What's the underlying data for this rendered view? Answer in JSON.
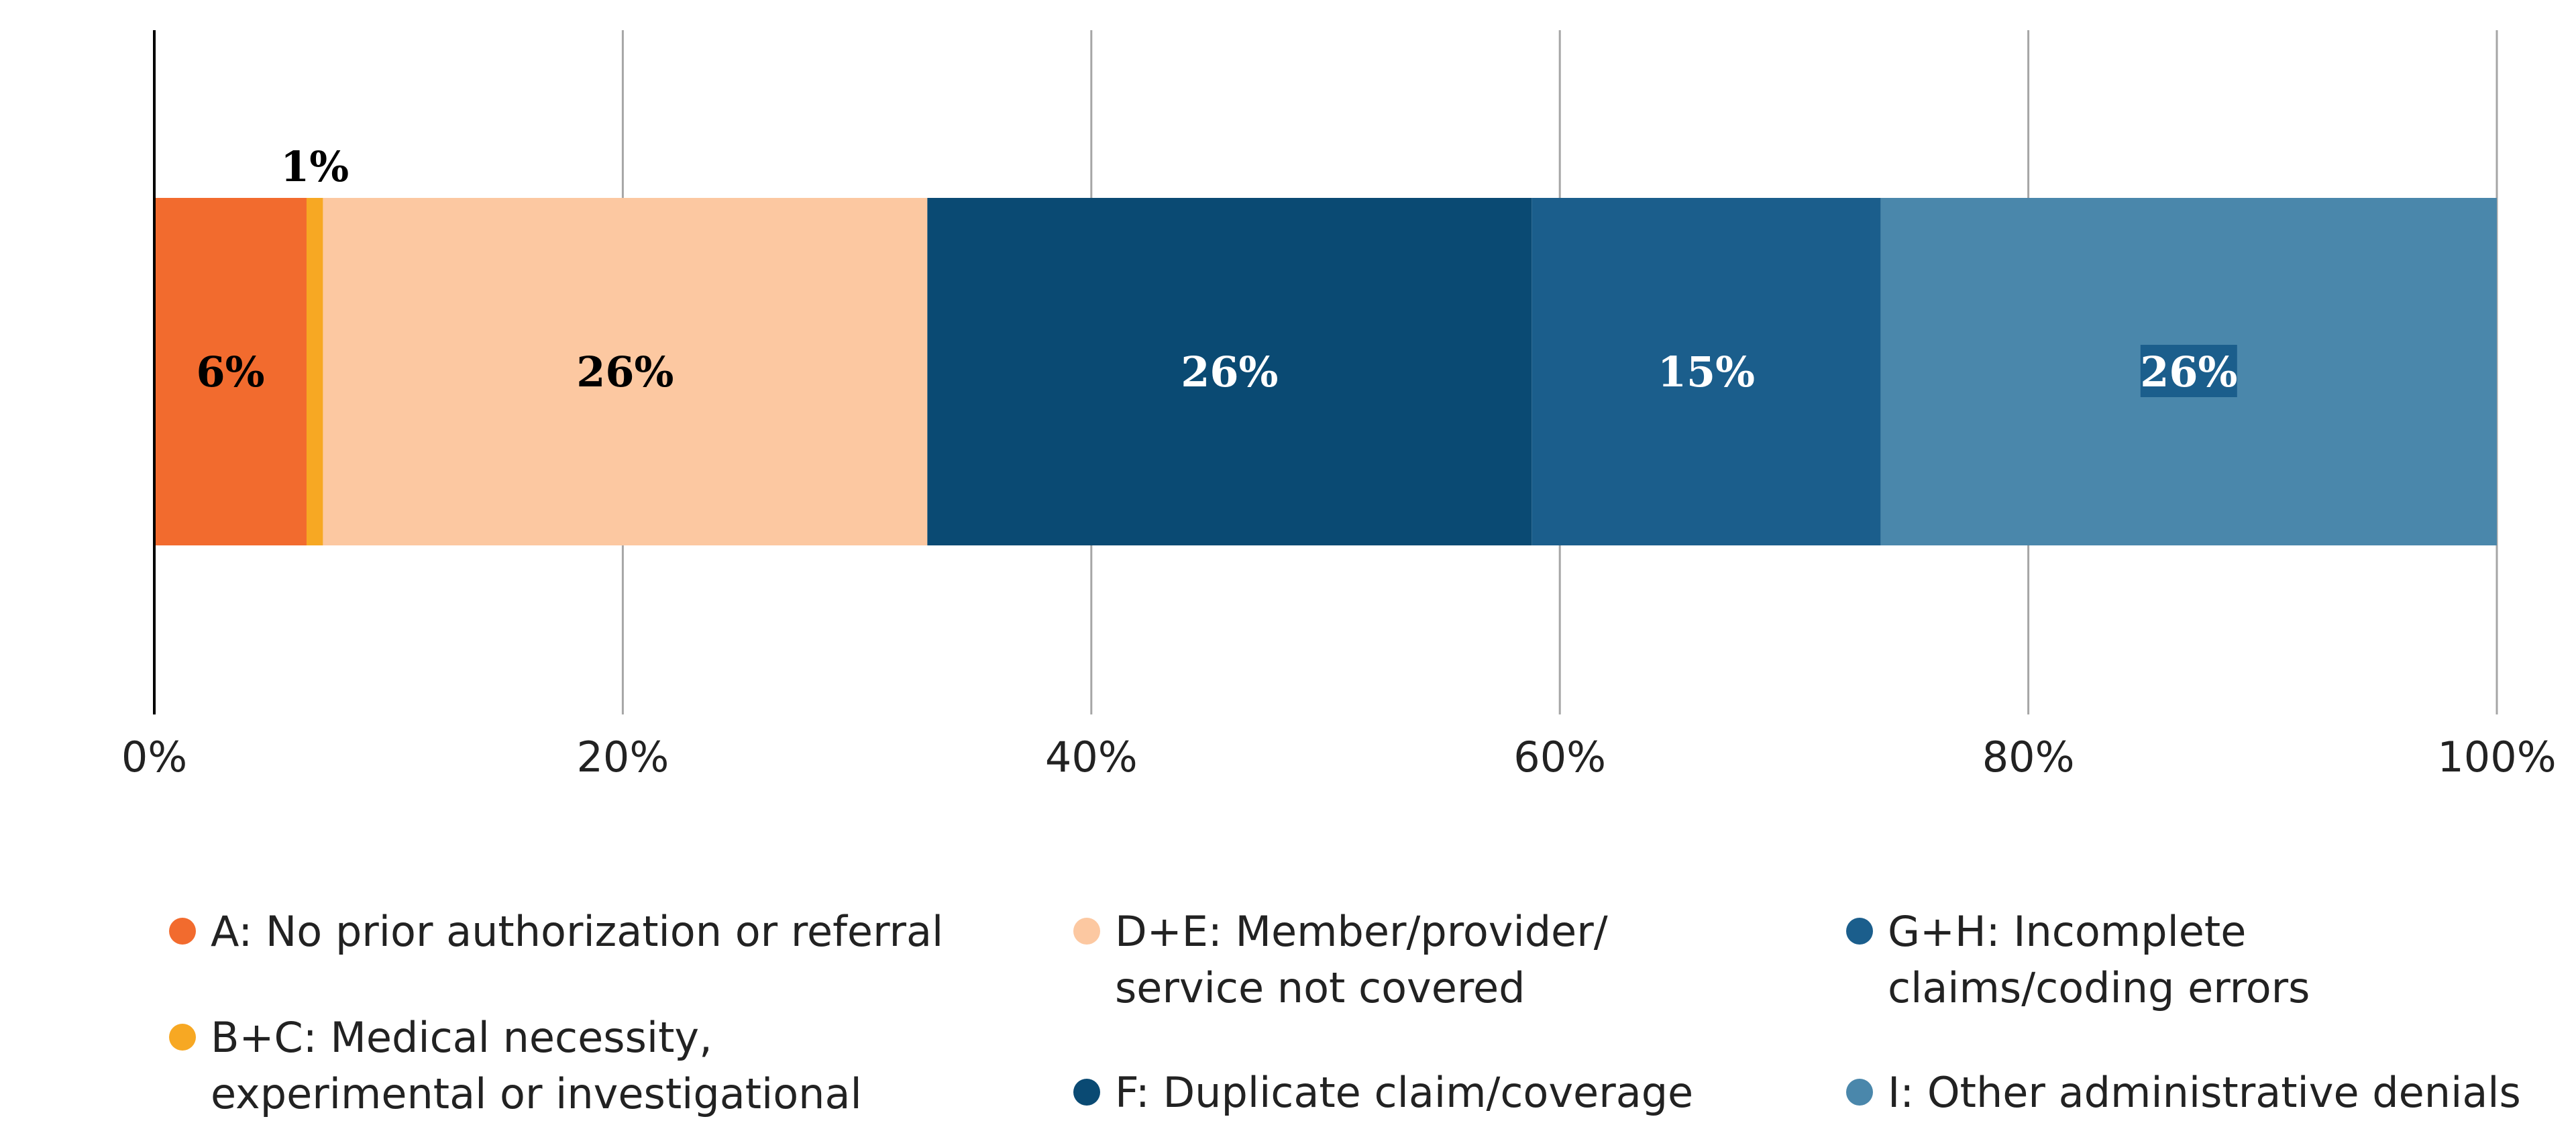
{
  "chart_data": {
    "type": "bar",
    "orientation": "horizontal",
    "stacked": true,
    "title": "",
    "xlabel": "",
    "ylabel": "",
    "xlim": [
      0,
      100
    ],
    "x_ticks": [
      0,
      20,
      40,
      60,
      80,
      100
    ],
    "x_tick_labels": [
      "0%",
      "20%",
      "40%",
      "60%",
      "80%",
      "100%"
    ],
    "grid": "vertical",
    "legend_position": "bottom",
    "series": [
      {
        "name": "A: No prior authorization  or referral",
        "legend_lines": [
          "A: No prior authorization  or referral"
        ],
        "value": 6.5,
        "label": "6%",
        "color": "#F26B2E",
        "label_color": "#000000",
        "label_placement": "inside"
      },
      {
        "name": "B+C: Medical necessity, experimental or investigational",
        "legend_lines": [
          "B+C: Medical necessity,",
          "experimental or investigational"
        ],
        "value": 0.7,
        "label": "1%",
        "color": "#F7A823",
        "label_color": "#000000",
        "label_placement": "above"
      },
      {
        "name": "D+E: Member/provider/ service not covered",
        "legend_lines": [
          "D+E: Member/provider/",
          "service not covered"
        ],
        "value": 25.8,
        "label": "26%",
        "color": "#FCC8A1",
        "label_color": "#000000",
        "label_placement": "inside"
      },
      {
        "name": "F: Duplicate claim/coverage",
        "legend_lines": [
          "F: Duplicate claim/coverage"
        ],
        "value": 25.8,
        "label": "26%",
        "color": "#0A4A73",
        "label_color": "#FFFFFF",
        "label_placement": "inside"
      },
      {
        "name": "G+H: Incomplete claims/coding errors",
        "legend_lines": [
          "G+H: Incomplete",
          "claims/coding errors"
        ],
        "value": 14.9,
        "label": "15%",
        "color": "#1B5E8C",
        "label_color": "#FFFFFF",
        "label_placement": "inside"
      },
      {
        "name": "I: Other administrative denials",
        "legend_lines": [
          "I: Other administrative denials"
        ],
        "value": 26.3,
        "label": "26%",
        "color": "#4A87AB",
        "label_color": "#FFFFFF",
        "label_placement": "inside",
        "label_bg": "#1B5E8C"
      }
    ]
  }
}
